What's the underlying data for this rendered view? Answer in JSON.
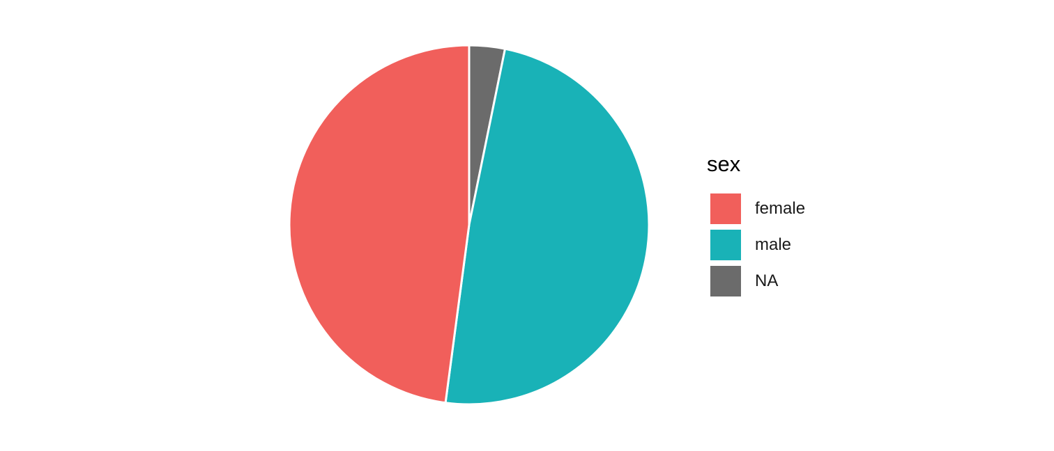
{
  "chart_data": {
    "type": "pie",
    "title": "",
    "legend_title": "sex",
    "legend_position": "right",
    "start_angle": "12 o'clock, clockwise",
    "slices": [
      {
        "label": "NA",
        "value": 3.2,
        "color": "#6b6b6b"
      },
      {
        "label": "male",
        "value": 48.9,
        "color": "#19b2b7"
      },
      {
        "label": "female",
        "value": 47.9,
        "color": "#f15f5b"
      }
    ],
    "legend_order": [
      "female",
      "male",
      "NA"
    ],
    "slice_border_color": "#ffffff"
  }
}
